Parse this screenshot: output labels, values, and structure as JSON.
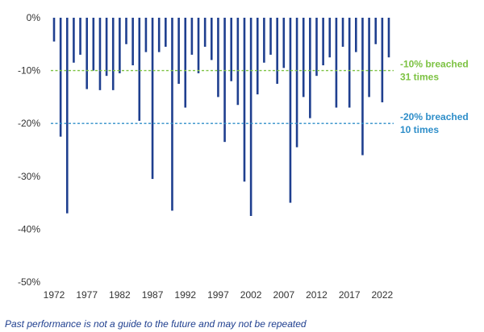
{
  "chart_data": {
    "type": "bar",
    "ylim": [
      -50,
      0
    ],
    "yticks": [
      0,
      -10,
      -20,
      -30,
      -40,
      -50
    ],
    "ytick_labels": [
      "0%",
      "-10%",
      "-20%",
      "-30%",
      "-40%",
      "-50%"
    ],
    "xtick_years": [
      1972,
      1977,
      1982,
      1987,
      1992,
      1997,
      2002,
      2007,
      2012,
      2017,
      2022
    ],
    "xtick_labels": [
      "1972",
      "1977",
      "1982",
      "1987",
      "1992",
      "1997",
      "2002",
      "2007",
      "2012",
      "2017",
      "2022"
    ],
    "categories": [
      1972,
      1973,
      1974,
      1975,
      1976,
      1977,
      1978,
      1979,
      1980,
      1981,
      1982,
      1983,
      1984,
      1985,
      1986,
      1987,
      1988,
      1989,
      1990,
      1991,
      1992,
      1993,
      1994,
      1995,
      1996,
      1997,
      1998,
      1999,
      2000,
      2001,
      2002,
      2003,
      2004,
      2005,
      2006,
      2007,
      2008,
      2009,
      2010,
      2011,
      2012,
      2013,
      2014,
      2015,
      2016,
      2017,
      2018,
      2019,
      2020,
      2021,
      2022,
      2023
    ],
    "values": [
      -4.5,
      -22.5,
      -37,
      -8.5,
      -7,
      -13.5,
      -10,
      -13.7,
      -11,
      -13.7,
      -10.5,
      -5,
      -9,
      -19.5,
      -6.5,
      -30.5,
      -6.5,
      -5.5,
      -36.5,
      -12.5,
      -17,
      -7,
      -10.5,
      -5.5,
      -8,
      -15,
      -23.5,
      -12,
      -16.5,
      -31,
      -37.5,
      -14.5,
      -8.5,
      -7,
      -12.5,
      -9.5,
      -35,
      -24.5,
      -15,
      -19,
      -11,
      -9,
      -7.5,
      -17,
      -5.5,
      -17,
      -6.5,
      -26,
      -15,
      -5,
      -16,
      -7.5
    ],
    "bar_color": "#1f3f8f",
    "reference_lines": [
      {
        "value": -10,
        "label_line1": "-10% breached",
        "label_line2": "31 times",
        "color": "#7cc242"
      },
      {
        "value": -20,
        "label_line1": "-20% breached",
        "label_line2": "10 times",
        "color": "#2e8ec9"
      }
    ],
    "grid": false
  },
  "footnote": "Past performance is not a guide to the future and may not be repeated"
}
